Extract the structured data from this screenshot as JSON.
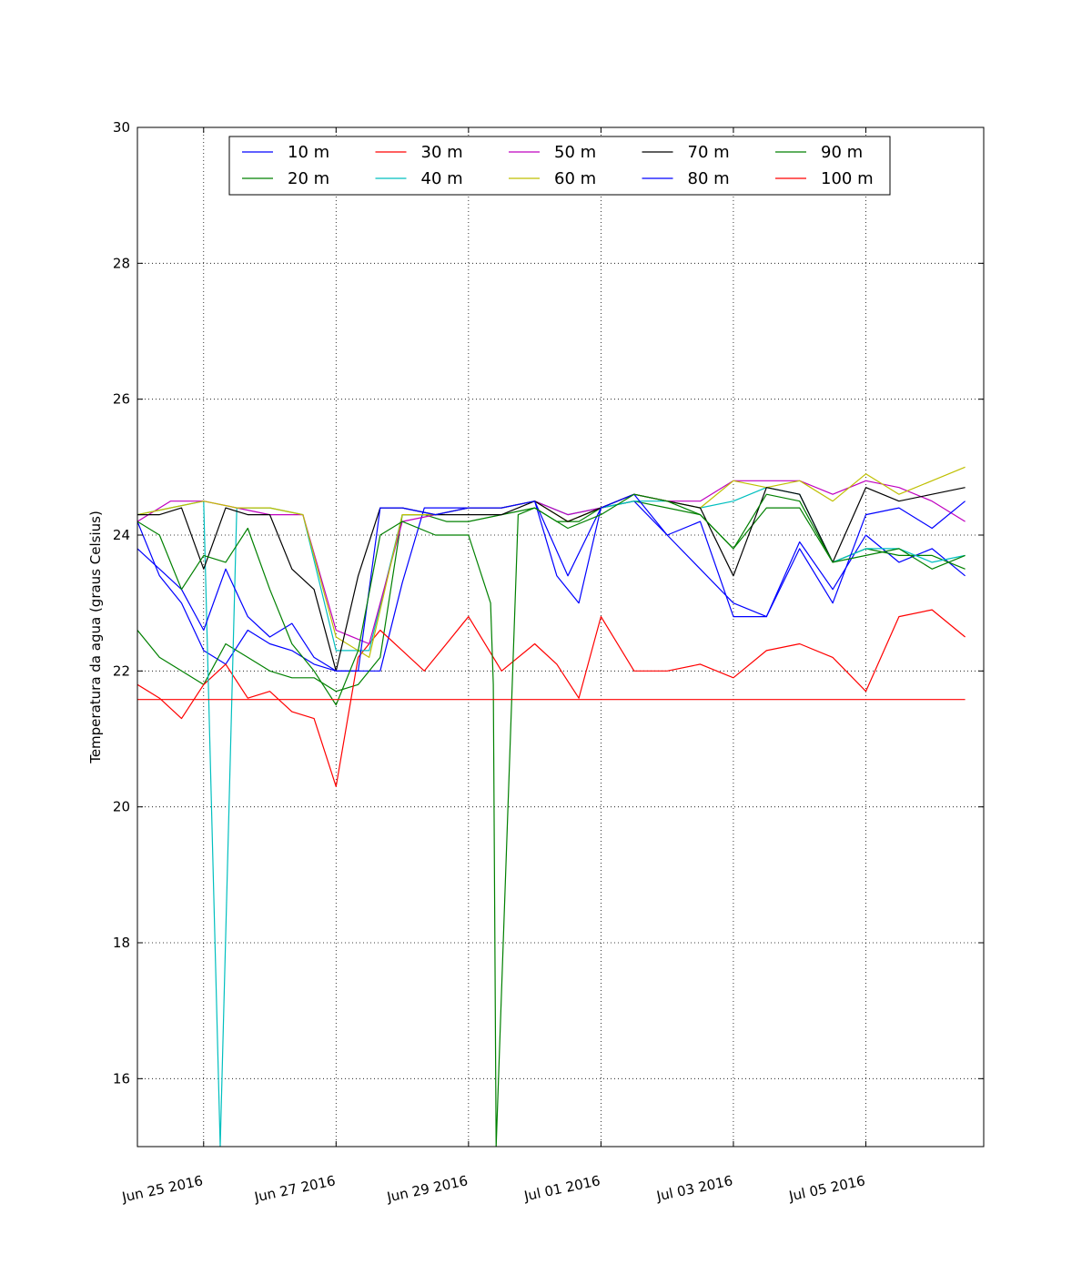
{
  "chart_data": {
    "type": "line",
    "title": "",
    "xlabel": "",
    "ylabel": "Temperatura da agua (graus Celsius)",
    "ylim": [
      15,
      30
    ],
    "xlim": [
      "2016-06-24",
      "2016-07-06"
    ],
    "y_ticks": [
      16,
      18,
      20,
      22,
      24,
      26,
      28,
      30
    ],
    "x_ticks": [
      {
        "date": "2016-06-25",
        "label": "Jun 25 2016"
      },
      {
        "date": "2016-06-27",
        "label": "Jun 27 2016"
      },
      {
        "date": "2016-06-29",
        "label": "Jun 29 2016"
      },
      {
        "date": "2016-07-01",
        "label": "Jul 01 2016"
      },
      {
        "date": "2016-07-03",
        "label": "Jul 03 2016"
      },
      {
        "date": "2016-07-05",
        "label": "Jul 05 2016"
      }
    ],
    "grid": true,
    "legend_position": "top-center",
    "legend_columns": 5,
    "series": [
      {
        "name": "10 m",
        "color": "#0000ff",
        "x": [
          "2016-06-24 00:00",
          "2016-06-24 08:00",
          "2016-06-24 16:00",
          "2016-06-25 00:00",
          "2016-06-25 08:00",
          "2016-06-25 16:00",
          "2016-06-26 00:00",
          "2016-06-26 08:00",
          "2016-06-26 16:00",
          "2016-06-27 00:00",
          "2016-06-27 08:00",
          "2016-06-27 16:00",
          "2016-06-28 00:00",
          "2016-06-28 08:00",
          "2016-06-28 16:00",
          "2016-06-29 00:00",
          "2016-06-29 12:00",
          "2016-06-30 00:00",
          "2016-06-30 08:00",
          "2016-06-30 16:00",
          "2016-07-01 00:00",
          "2016-07-01 12:00",
          "2016-07-02 00:00",
          "2016-07-02 12:00",
          "2016-07-03 00:00",
          "2016-07-03 12:00",
          "2016-07-04 00:00",
          "2016-07-04 12:00",
          "2016-07-05 00:00",
          "2016-07-05 12:00",
          "2016-07-06 00:00",
          "2016-07-06 12:00"
        ],
        "y": [
          24.2,
          23.4,
          23.0,
          22.3,
          22.1,
          22.6,
          22.4,
          22.3,
          22.1,
          22.0,
          22.0,
          22.0,
          23.3,
          24.4,
          24.4,
          24.4,
          24.4,
          24.5,
          23.4,
          23.0,
          24.4,
          24.5,
          24.0,
          23.5,
          23.0,
          22.8,
          23.9,
          23.2,
          24.0,
          23.6,
          23.8,
          23.4
        ]
      },
      {
        "name": "20 m",
        "color": "#008000",
        "x": [
          "2016-06-24 00:00",
          "2016-06-24 08:00",
          "2016-06-24 16:00",
          "2016-06-25 00:00",
          "2016-06-25 08:00",
          "2016-06-25 16:00",
          "2016-06-26 00:00",
          "2016-06-26 08:00",
          "2016-06-26 16:00",
          "2016-06-27 00:00",
          "2016-06-27 08:00",
          "2016-06-27 16:00",
          "2016-06-28 00:00",
          "2016-06-28 08:00",
          "2016-06-28 16:00",
          "2016-06-29 00:00",
          "2016-06-29 12:00",
          "2016-06-30 00:00",
          "2016-06-30 08:00",
          "2016-06-30 16:00",
          "2016-07-01 00:00",
          "2016-07-01 12:00",
          "2016-07-02 00:00",
          "2016-07-02 12:00",
          "2016-07-03 00:00",
          "2016-07-03 12:00",
          "2016-07-04 00:00",
          "2016-07-04 12:00",
          "2016-07-05 00:00",
          "2016-07-05 12:00",
          "2016-07-06 00:00",
          "2016-07-06 12:00"
        ],
        "y": [
          22.6,
          22.2,
          22.0,
          21.8,
          22.4,
          22.2,
          22.0,
          21.9,
          21.9,
          21.7,
          21.8,
          22.2,
          24.3,
          24.3,
          24.2,
          24.2,
          24.3,
          24.4,
          24.2,
          24.2,
          24.4,
          24.5,
          24.4,
          24.3,
          23.8,
          24.4,
          24.4,
          23.6,
          23.8,
          23.7,
          23.7,
          23.5
        ]
      },
      {
        "name": "30 m",
        "color": "#ff0000",
        "x": [
          "2016-06-24 00:00",
          "2016-06-24 08:00",
          "2016-06-24 16:00",
          "2016-06-25 00:00",
          "2016-06-25 08:00",
          "2016-06-25 16:00",
          "2016-06-26 00:00",
          "2016-06-26 08:00",
          "2016-06-26 16:00",
          "2016-06-27 00:00",
          "2016-06-27 08:00",
          "2016-06-27 16:00",
          "2016-06-28 00:00",
          "2016-06-28 08:00",
          "2016-06-28 16:00",
          "2016-06-29 00:00",
          "2016-06-29 12:00",
          "2016-06-30 00:00",
          "2016-06-30 08:00",
          "2016-06-30 16:00",
          "2016-07-01 00:00",
          "2016-07-01 12:00",
          "2016-07-02 00:00",
          "2016-07-02 12:00",
          "2016-07-03 00:00",
          "2016-07-03 12:00",
          "2016-07-04 00:00",
          "2016-07-04 12:00",
          "2016-07-05 00:00",
          "2016-07-05 12:00",
          "2016-07-06 00:00",
          "2016-07-06 12:00"
        ],
        "y": [
          21.8,
          21.6,
          21.3,
          21.8,
          22.1,
          21.6,
          21.7,
          21.4,
          21.3,
          20.3,
          22.2,
          22.6,
          22.3,
          22.0,
          22.4,
          22.8,
          22.0,
          22.4,
          22.1,
          21.6,
          22.8,
          22.0,
          22.0,
          22.1,
          21.9,
          22.3,
          22.4,
          22.2,
          21.7,
          22.8,
          22.9,
          22.5
        ]
      },
      {
        "name": "40 m",
        "color": "#00bfbf",
        "x": [
          "2016-06-24 00:00",
          "2016-06-24 12:00",
          "2016-06-25 00:00",
          "2016-06-25 06:00",
          "2016-06-25 12:00",
          "2016-06-26 00:00",
          "2016-06-26 12:00",
          "2016-06-27 00:00",
          "2016-06-27 12:00",
          "2016-06-28 00:00",
          "2016-06-28 12:00",
          "2016-06-29 00:00",
          "2016-06-29 12:00",
          "2016-06-30 00:00",
          "2016-06-30 12:00",
          "2016-07-01 00:00",
          "2016-07-01 12:00",
          "2016-07-02 00:00",
          "2016-07-02 12:00",
          "2016-07-03 00:00",
          "2016-07-03 12:00",
          "2016-07-04 00:00",
          "2016-07-04 12:00",
          "2016-07-05 00:00",
          "2016-07-05 12:00",
          "2016-07-06 00:00",
          "2016-07-06 12:00"
        ],
        "y": [
          24.3,
          24.4,
          24.5,
          15.0,
          24.4,
          24.4,
          24.3,
          22.3,
          22.3,
          24.3,
          24.3,
          24.4,
          24.4,
          24.5,
          24.3,
          24.4,
          24.5,
          24.5,
          24.4,
          24.5,
          24.7,
          24.6,
          23.6,
          23.8,
          23.8,
          23.6,
          23.7
        ]
      },
      {
        "name": "50 m",
        "color": "#bf00bf",
        "x": [
          "2016-06-24 00:00",
          "2016-06-24 12:00",
          "2016-06-25 00:00",
          "2016-06-25 12:00",
          "2016-06-26 00:00",
          "2016-06-26 12:00",
          "2016-06-27 00:00",
          "2016-06-27 12:00",
          "2016-06-28 00:00",
          "2016-06-28 12:00",
          "2016-06-29 00:00",
          "2016-06-29 12:00",
          "2016-06-30 00:00",
          "2016-06-30 12:00",
          "2016-07-01 00:00",
          "2016-07-01 12:00",
          "2016-07-02 00:00",
          "2016-07-02 12:00",
          "2016-07-03 00:00",
          "2016-07-03 12:00",
          "2016-07-04 00:00",
          "2016-07-04 12:00",
          "2016-07-05 00:00",
          "2016-07-05 12:00",
          "2016-07-06 00:00",
          "2016-07-06 12:00"
        ],
        "y": [
          24.2,
          24.5,
          24.5,
          24.4,
          24.3,
          24.3,
          22.6,
          22.4,
          24.2,
          24.3,
          24.4,
          24.4,
          24.5,
          24.3,
          24.4,
          24.6,
          24.5,
          24.5,
          24.8,
          24.8,
          24.8,
          24.6,
          24.8,
          24.7,
          24.5,
          24.2
        ]
      },
      {
        "name": "60 m",
        "color": "#bfbf00",
        "x": [
          "2016-06-24 00:00",
          "2016-06-24 12:00",
          "2016-06-25 00:00",
          "2016-06-25 12:00",
          "2016-06-26 00:00",
          "2016-06-26 12:00",
          "2016-06-27 00:00",
          "2016-06-27 12:00",
          "2016-06-28 00:00",
          "2016-06-28 12:00",
          "2016-06-29 00:00",
          "2016-06-29 12:00",
          "2016-06-30 00:00",
          "2016-06-30 12:00",
          "2016-07-01 00:00",
          "2016-07-01 12:00",
          "2016-07-02 00:00",
          "2016-07-02 12:00",
          "2016-07-03 00:00",
          "2016-07-03 12:00",
          "2016-07-04 00:00",
          "2016-07-04 12:00",
          "2016-07-05 00:00",
          "2016-07-05 12:00",
          "2016-07-06 00:00",
          "2016-07-06 12:00"
        ],
        "y": [
          24.3,
          24.4,
          24.5,
          24.4,
          24.4,
          24.3,
          22.5,
          22.2,
          24.3,
          24.3,
          24.4,
          24.4,
          24.5,
          24.2,
          24.4,
          24.6,
          24.5,
          24.4,
          24.8,
          24.7,
          24.8,
          24.5,
          24.9,
          24.6,
          24.8,
          25.0
        ]
      },
      {
        "name": "70 m",
        "color": "#000000",
        "x": [
          "2016-06-24 00:00",
          "2016-06-24 08:00",
          "2016-06-24 16:00",
          "2016-06-25 00:00",
          "2016-06-25 08:00",
          "2016-06-25 16:00",
          "2016-06-26 00:00",
          "2016-06-26 08:00",
          "2016-06-26 16:00",
          "2016-06-27 00:00",
          "2016-06-27 08:00",
          "2016-06-27 16:00",
          "2016-06-28 00:00",
          "2016-06-28 12:00",
          "2016-06-29 00:00",
          "2016-06-29 12:00",
          "2016-06-30 00:00",
          "2016-06-30 12:00",
          "2016-07-01 00:00",
          "2016-07-01 12:00",
          "2016-07-02 00:00",
          "2016-07-02 12:00",
          "2016-07-03 00:00",
          "2016-07-03 12:00",
          "2016-07-04 00:00",
          "2016-07-04 12:00",
          "2016-07-05 00:00",
          "2016-07-05 12:00",
          "2016-07-06 00:00",
          "2016-07-06 12:00"
        ],
        "y": [
          24.3,
          24.3,
          24.4,
          23.5,
          24.4,
          24.3,
          24.3,
          23.5,
          23.2,
          22.0,
          23.4,
          24.4,
          24.4,
          24.3,
          24.3,
          24.3,
          24.5,
          24.2,
          24.4,
          24.6,
          24.5,
          24.4,
          23.4,
          24.7,
          24.6,
          23.6,
          24.7,
          24.5,
          24.6,
          24.7
        ]
      },
      {
        "name": "80 m",
        "color": "#0000ff",
        "x": [
          "2016-06-24 00:00",
          "2016-06-24 08:00",
          "2016-06-24 16:00",
          "2016-06-25 00:00",
          "2016-06-25 08:00",
          "2016-06-25 16:00",
          "2016-06-26 00:00",
          "2016-06-26 08:00",
          "2016-06-26 16:00",
          "2016-06-27 00:00",
          "2016-06-27 08:00",
          "2016-06-27 16:00",
          "2016-06-28 00:00",
          "2016-06-28 12:00",
          "2016-06-29 00:00",
          "2016-06-29 12:00",
          "2016-06-30 00:00",
          "2016-06-30 12:00",
          "2016-07-01 00:00",
          "2016-07-01 12:00",
          "2016-07-02 00:00",
          "2016-07-02 12:00",
          "2016-07-03 00:00",
          "2016-07-03 12:00",
          "2016-07-04 00:00",
          "2016-07-04 12:00",
          "2016-07-05 00:00",
          "2016-07-05 12:00",
          "2016-07-06 00:00",
          "2016-07-06 12:00"
        ],
        "y": [
          23.8,
          23.5,
          23.2,
          22.6,
          23.5,
          22.8,
          22.5,
          22.7,
          22.2,
          22.0,
          22.0,
          24.4,
          24.4,
          24.3,
          24.4,
          24.4,
          24.5,
          23.4,
          24.4,
          24.6,
          24.0,
          24.2,
          22.8,
          22.8,
          23.8,
          23.0,
          24.3,
          24.4,
          24.1,
          24.5
        ]
      },
      {
        "name": "90 m",
        "color": "#008000",
        "x": [
          "2016-06-24 00:00",
          "2016-06-24 08:00",
          "2016-06-24 16:00",
          "2016-06-25 00:00",
          "2016-06-25 08:00",
          "2016-06-25 16:00",
          "2016-06-26 00:00",
          "2016-06-26 08:00",
          "2016-06-26 16:00",
          "2016-06-27 00:00",
          "2016-06-27 08:00",
          "2016-06-27 16:00",
          "2016-06-28 00:00",
          "2016-06-28 12:00",
          "2016-06-29 00:00",
          "2016-06-29 08:00",
          "2016-06-29 09:00",
          "2016-06-29 10:00",
          "2016-06-29 18:00",
          "2016-06-30 00:00",
          "2016-06-30 12:00",
          "2016-07-01 00:00",
          "2016-07-01 12:00",
          "2016-07-02 00:00",
          "2016-07-02 12:00",
          "2016-07-03 00:00",
          "2016-07-03 12:00",
          "2016-07-04 00:00",
          "2016-07-04 12:00",
          "2016-07-05 00:00",
          "2016-07-05 12:00",
          "2016-07-06 00:00",
          "2016-07-06 12:00"
        ],
        "y": [
          24.2,
          24.0,
          23.2,
          23.7,
          23.6,
          24.1,
          23.2,
          22.4,
          22.0,
          21.5,
          22.3,
          24.0,
          24.2,
          24.0,
          24.0,
          23.0,
          21.8,
          15.0,
          24.3,
          24.4,
          24.1,
          24.3,
          24.6,
          24.5,
          24.3,
          23.8,
          24.6,
          24.5,
          23.6,
          23.7,
          23.8,
          23.5,
          23.7
        ]
      },
      {
        "name": "100 m",
        "color": "#ff0000",
        "x": [
          "2016-06-24 00:00",
          "2016-07-06 12:00"
        ],
        "y": [
          21.58,
          21.58
        ]
      }
    ]
  }
}
